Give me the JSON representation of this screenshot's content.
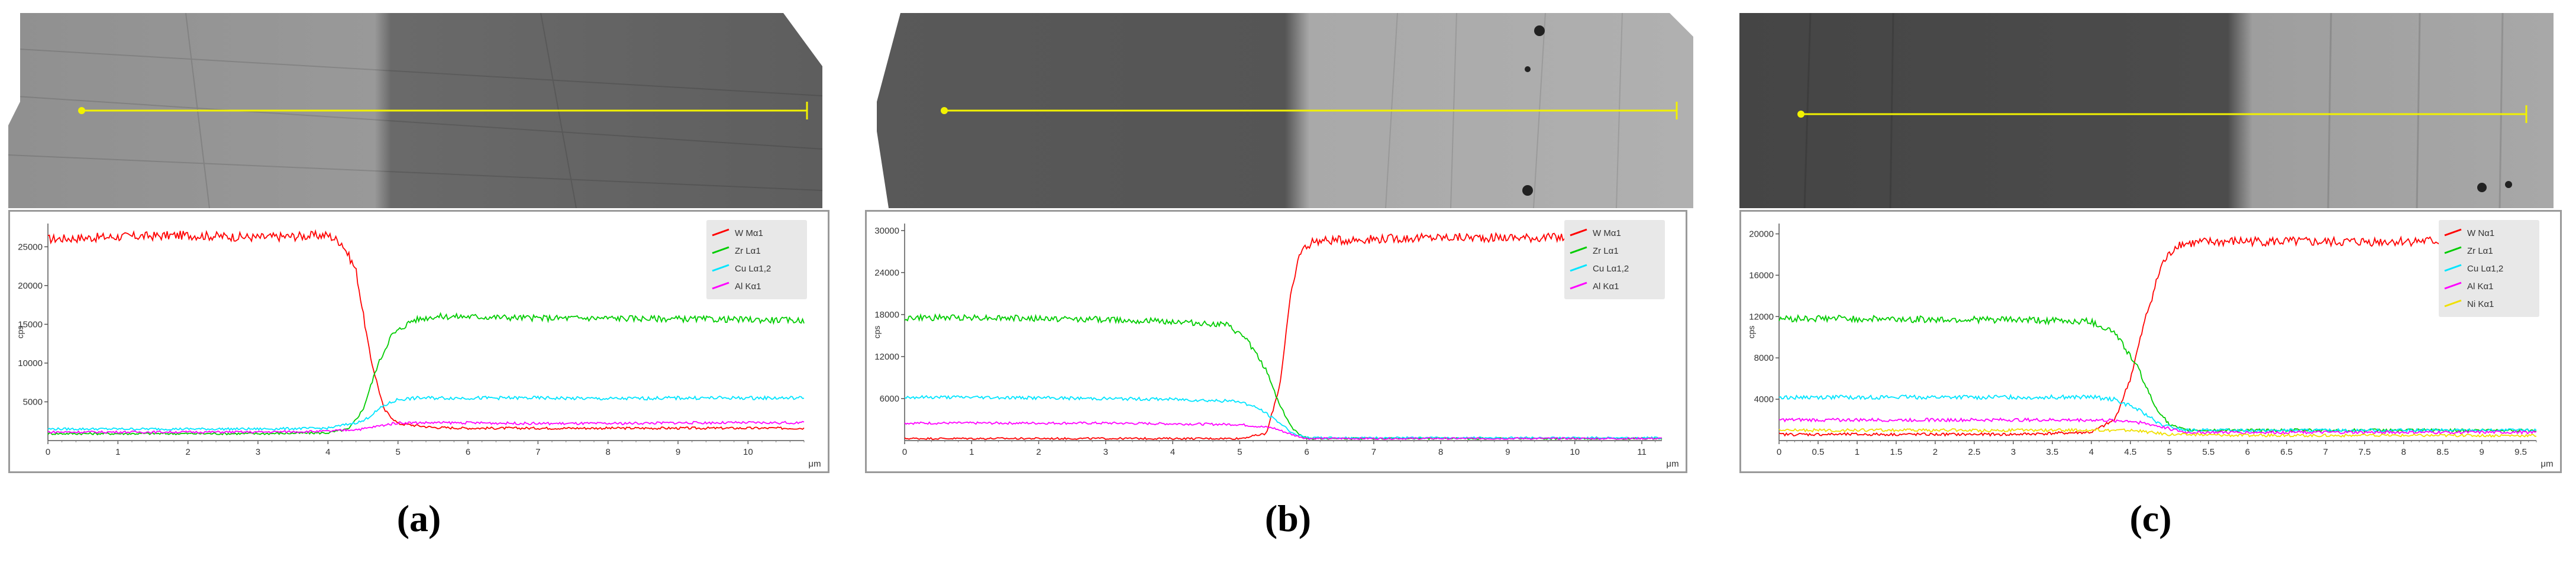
{
  "colors": {
    "W": "#ff0000",
    "Zr": "#00cc00",
    "Cu": "#00e5ff",
    "Al": "#ff00ff",
    "Ni": "#f0e000",
    "scan_line": "#f2f200"
  },
  "chart_data": [
    {
      "type": "line",
      "caption": "(a)",
      "ylabel": "cps",
      "xlabel": "μm",
      "xlim": [
        0,
        10.8
      ],
      "ylim": [
        0,
        28000
      ],
      "xticks": [
        0,
        1,
        2,
        3,
        4,
        5,
        6,
        7,
        8,
        9,
        10
      ],
      "xtick_labels": [
        "0",
        "1",
        "2",
        "3",
        "4",
        "5",
        "6",
        "7",
        "8",
        "9",
        "10"
      ],
      "yticks": [
        5000,
        10000,
        15000,
        20000,
        25000
      ],
      "ytick_labels": [
        "5000",
        "10000",
        "15000",
        "20000",
        "25000"
      ],
      "transition_um": 4.6,
      "series": [
        {
          "name": "W Mα1",
          "color": "#ff0000",
          "x": [
            0,
            1,
            2,
            3,
            4,
            4.2,
            4.4,
            4.6,
            4.8,
            5.0,
            5.5,
            6,
            7,
            8,
            9,
            10,
            10.8
          ],
          "y": [
            26000,
            26300,
            26500,
            26200,
            26500,
            25500,
            22000,
            11000,
            4000,
            2200,
            1700,
            1600,
            1600,
            1600,
            1600,
            1600,
            1600
          ]
        },
        {
          "name": "Zr Lα1",
          "color": "#00cc00",
          "x": [
            0,
            1,
            2,
            3,
            4,
            4.3,
            4.5,
            4.7,
            4.9,
            5.2,
            5.5,
            6,
            7,
            8,
            9,
            10,
            10.8
          ],
          "y": [
            900,
            900,
            900,
            900,
            1000,
            1500,
            4000,
            9500,
            13500,
            15500,
            16000,
            16000,
            15800,
            15800,
            15700,
            15600,
            15500
          ]
        },
        {
          "name": "Cu Lα1,2",
          "color": "#00e5ff",
          "x": [
            0,
            1,
            2,
            3,
            4,
            4.5,
            4.8,
            5.0,
            5.3,
            6,
            7,
            8,
            9,
            10,
            10.8
          ],
          "y": [
            1500,
            1500,
            1500,
            1500,
            1600,
            2500,
            4500,
            5300,
            5500,
            5500,
            5500,
            5400,
            5500,
            5500,
            5500
          ]
        },
        {
          "name": "Al Kα1",
          "color": "#ff00ff",
          "x": [
            0,
            1,
            2,
            3,
            4,
            4.5,
            4.8,
            5.0,
            6,
            7,
            8,
            9,
            10,
            10.8
          ],
          "y": [
            1100,
            1100,
            1100,
            1100,
            1200,
            1500,
            2000,
            2300,
            2300,
            2200,
            2200,
            2300,
            2300,
            2300
          ]
        }
      ]
    },
    {
      "type": "line",
      "caption": "(b)",
      "ylabel": "cps",
      "xlabel": "μm",
      "xlim": [
        0,
        11.3
      ],
      "ylim": [
        0,
        31000
      ],
      "xticks": [
        0,
        1,
        2,
        3,
        4,
        5,
        6,
        7,
        8,
        9,
        10,
        11
      ],
      "xtick_labels": [
        "0",
        "1",
        "2",
        "3",
        "4",
        "5",
        "6",
        "7",
        "8",
        "9",
        "10",
        "11"
      ],
      "yticks": [
        6000,
        12000,
        18000,
        24000,
        30000
      ],
      "ytick_labels": [
        "6000",
        "12000",
        "18000",
        "24000",
        "30000"
      ],
      "transition_um": 5.6,
      "series": [
        {
          "name": "W Mα1",
          "color": "#ff0000",
          "x": [
            0,
            1,
            2,
            3,
            4,
            5,
            5.4,
            5.6,
            5.75,
            5.9,
            6.1,
            7,
            8,
            9,
            10,
            11,
            11.3
          ],
          "y": [
            300,
            300,
            300,
            300,
            300,
            300,
            1000,
            8000,
            20000,
            27000,
            28500,
            28800,
            29000,
            29000,
            29000,
            29000,
            29000
          ]
        },
        {
          "name": "Zr Lα1",
          "color": "#00cc00",
          "x": [
            0,
            1,
            2,
            3,
            4,
            4.8,
            5.1,
            5.4,
            5.6,
            5.8,
            6.0,
            7,
            8,
            9,
            10,
            11,
            11.3
          ],
          "y": [
            17500,
            17600,
            17400,
            17300,
            17000,
            16500,
            14500,
            10000,
            5000,
            1500,
            300,
            300,
            300,
            300,
            300,
            300,
            300
          ]
        },
        {
          "name": "Cu Lα1,2",
          "color": "#00e5ff",
          "x": [
            0,
            1,
            2,
            3,
            4,
            5,
            5.3,
            5.6,
            5.8,
            6.0,
            7,
            8,
            9,
            10,
            11,
            11.3
          ],
          "y": [
            6200,
            6200,
            6100,
            6000,
            5900,
            5600,
            4500,
            2500,
            1000,
            400,
            400,
            400,
            400,
            400,
            400,
            400
          ]
        },
        {
          "name": "Al Kα1",
          "color": "#ff00ff",
          "x": [
            0,
            1,
            2,
            3,
            4,
            5,
            5.5,
            5.8,
            6.0,
            7,
            8,
            9,
            10,
            11,
            11.3
          ],
          "y": [
            2500,
            2500,
            2500,
            2500,
            2400,
            2300,
            1800,
            800,
            300,
            300,
            300,
            300,
            300,
            300,
            300
          ]
        }
      ]
    },
    {
      "type": "line",
      "caption": "(c)",
      "ylabel": "cps",
      "xlabel": "μm",
      "xlim": [
        0,
        9.7
      ],
      "ylim": [
        0,
        21000
      ],
      "xticks": [
        0,
        0.5,
        1,
        1.5,
        2,
        2.5,
        3,
        3.5,
        4,
        4.5,
        5,
        5.5,
        6,
        6.5,
        7,
        7.5,
        8,
        8.5,
        9,
        9.5
      ],
      "xtick_labels": [
        "0",
        "0.5",
        "1",
        "1.5",
        "2",
        "2.5",
        "3",
        "3.5",
        "4",
        "4.5",
        "5",
        "5.5",
        "6",
        "6.5",
        "7",
        "7.5",
        "8",
        "8.5",
        "9",
        "9.5"
      ],
      "yticks": [
        4000,
        8000,
        12000,
        16000,
        20000
      ],
      "ytick_labels": [
        "4000",
        "8000",
        "12000",
        "16000",
        "20000"
      ],
      "transition_um": 4.5,
      "series": [
        {
          "name": "W Nα1",
          "color": "#ff0000",
          "x": [
            0,
            1,
            2,
            3,
            4,
            4.3,
            4.5,
            4.7,
            4.9,
            5.1,
            5.5,
            6,
            7,
            8,
            9,
            9.7
          ],
          "y": [
            600,
            600,
            600,
            600,
            800,
            2000,
            6000,
            12000,
            17000,
            19000,
            19200,
            19300,
            19200,
            19300,
            19300,
            19300
          ]
        },
        {
          "name": "Zr Lα1",
          "color": "#00cc00",
          "x": [
            0,
            1,
            2,
            3,
            4,
            4.3,
            4.6,
            4.8,
            5.0,
            5.2,
            6,
            7,
            8,
            9,
            9.7
          ],
          "y": [
            11800,
            11800,
            11700,
            11700,
            11500,
            10500,
            7000,
            3500,
            1500,
            1000,
            1000,
            1000,
            1000,
            1000,
            1000
          ]
        },
        {
          "name": "Cu Lα1,2",
          "color": "#00e5ff",
          "x": [
            0,
            1,
            2,
            3,
            4,
            4.3,
            4.6,
            4.9,
            5.2,
            6,
            7,
            8,
            9,
            9.7
          ],
          "y": [
            4200,
            4200,
            4200,
            4200,
            4200,
            4000,
            3000,
            1500,
            1000,
            1000,
            1000,
            1000,
            1000,
            1000
          ]
        },
        {
          "name": "Al Kα1",
          "color": "#ff00ff",
          "x": [
            0,
            1,
            2,
            3,
            4,
            4.5,
            4.8,
            5.2,
            6,
            7,
            8,
            9,
            9.7
          ],
          "y": [
            2000,
            2000,
            2000,
            2000,
            2000,
            1900,
            1500,
            800,
            800,
            800,
            800,
            800,
            800
          ]
        },
        {
          "name": "Ni Kα1",
          "color": "#f0e000",
          "x": [
            0,
            1,
            2,
            3,
            4,
            4.5,
            5,
            6,
            7,
            8,
            9,
            9.7
          ],
          "y": [
            1000,
            1000,
            1000,
            1000,
            1000,
            1000,
            600,
            500,
            500,
            500,
            500,
            500
          ]
        }
      ]
    }
  ]
}
